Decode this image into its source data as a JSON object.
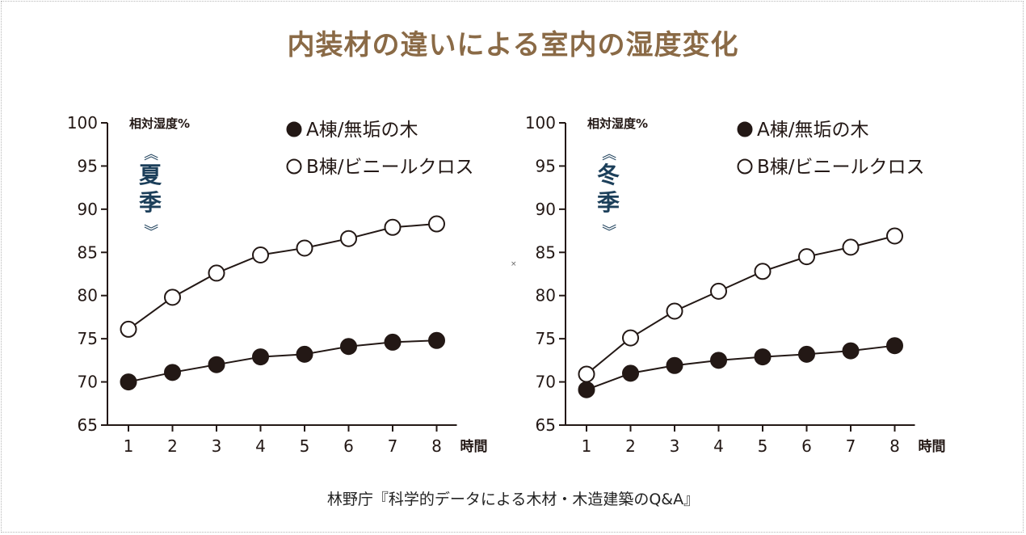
{
  "title": "内装材の違いによる室内の湿度変化",
  "source": "林野庁『科学的データによる木材・木造建築のQ&A』",
  "center_mark": "×",
  "colors": {
    "title": "#8a6a46",
    "season_label": "#1c3f5a",
    "series_a_fill": "#231815",
    "series_b_fill": "#ffffff",
    "line": "#231815",
    "axis": "#231815",
    "text": "#231815"
  },
  "chart_data": [
    {
      "type": "line",
      "season": "夏季",
      "season_bracket_top": "《",
      "season_bracket_bottom": "》",
      "ylabel": "相対湿度%",
      "xlabel": "時間",
      "ylim": [
        65,
        100
      ],
      "yticks": [
        65,
        70,
        75,
        80,
        85,
        90,
        95,
        100
      ],
      "x": [
        1,
        2,
        3,
        4,
        5,
        6,
        7,
        8
      ],
      "legend_placement": "top-right",
      "series": [
        {
          "name": "A棟/無垢の木",
          "marker": "filled-circle",
          "values": [
            70.0,
            71.1,
            72.0,
            72.9,
            73.2,
            74.1,
            74.6,
            74.8
          ]
        },
        {
          "name": "B棟/ビニールクロス",
          "marker": "open-circle",
          "values": [
            76.1,
            79.8,
            82.6,
            84.7,
            85.5,
            86.6,
            87.9,
            88.3
          ]
        }
      ]
    },
    {
      "type": "line",
      "season": "冬季",
      "season_bracket_top": "《",
      "season_bracket_bottom": "》",
      "ylabel": "相対湿度%",
      "xlabel": "時間",
      "ylim": [
        65,
        100
      ],
      "yticks": [
        65,
        70,
        75,
        80,
        85,
        90,
        95,
        100
      ],
      "x": [
        1,
        2,
        3,
        4,
        5,
        6,
        7,
        8
      ],
      "legend_placement": "top-right",
      "series": [
        {
          "name": "A棟/無垢の木",
          "marker": "filled-circle",
          "values": [
            69.1,
            71.0,
            71.9,
            72.5,
            72.9,
            73.2,
            73.6,
            74.2
          ]
        },
        {
          "name": "B棟/ビニールクロス",
          "marker": "open-circle",
          "values": [
            70.9,
            75.1,
            78.2,
            80.5,
            82.8,
            84.5,
            85.6,
            86.9
          ]
        }
      ]
    }
  ]
}
